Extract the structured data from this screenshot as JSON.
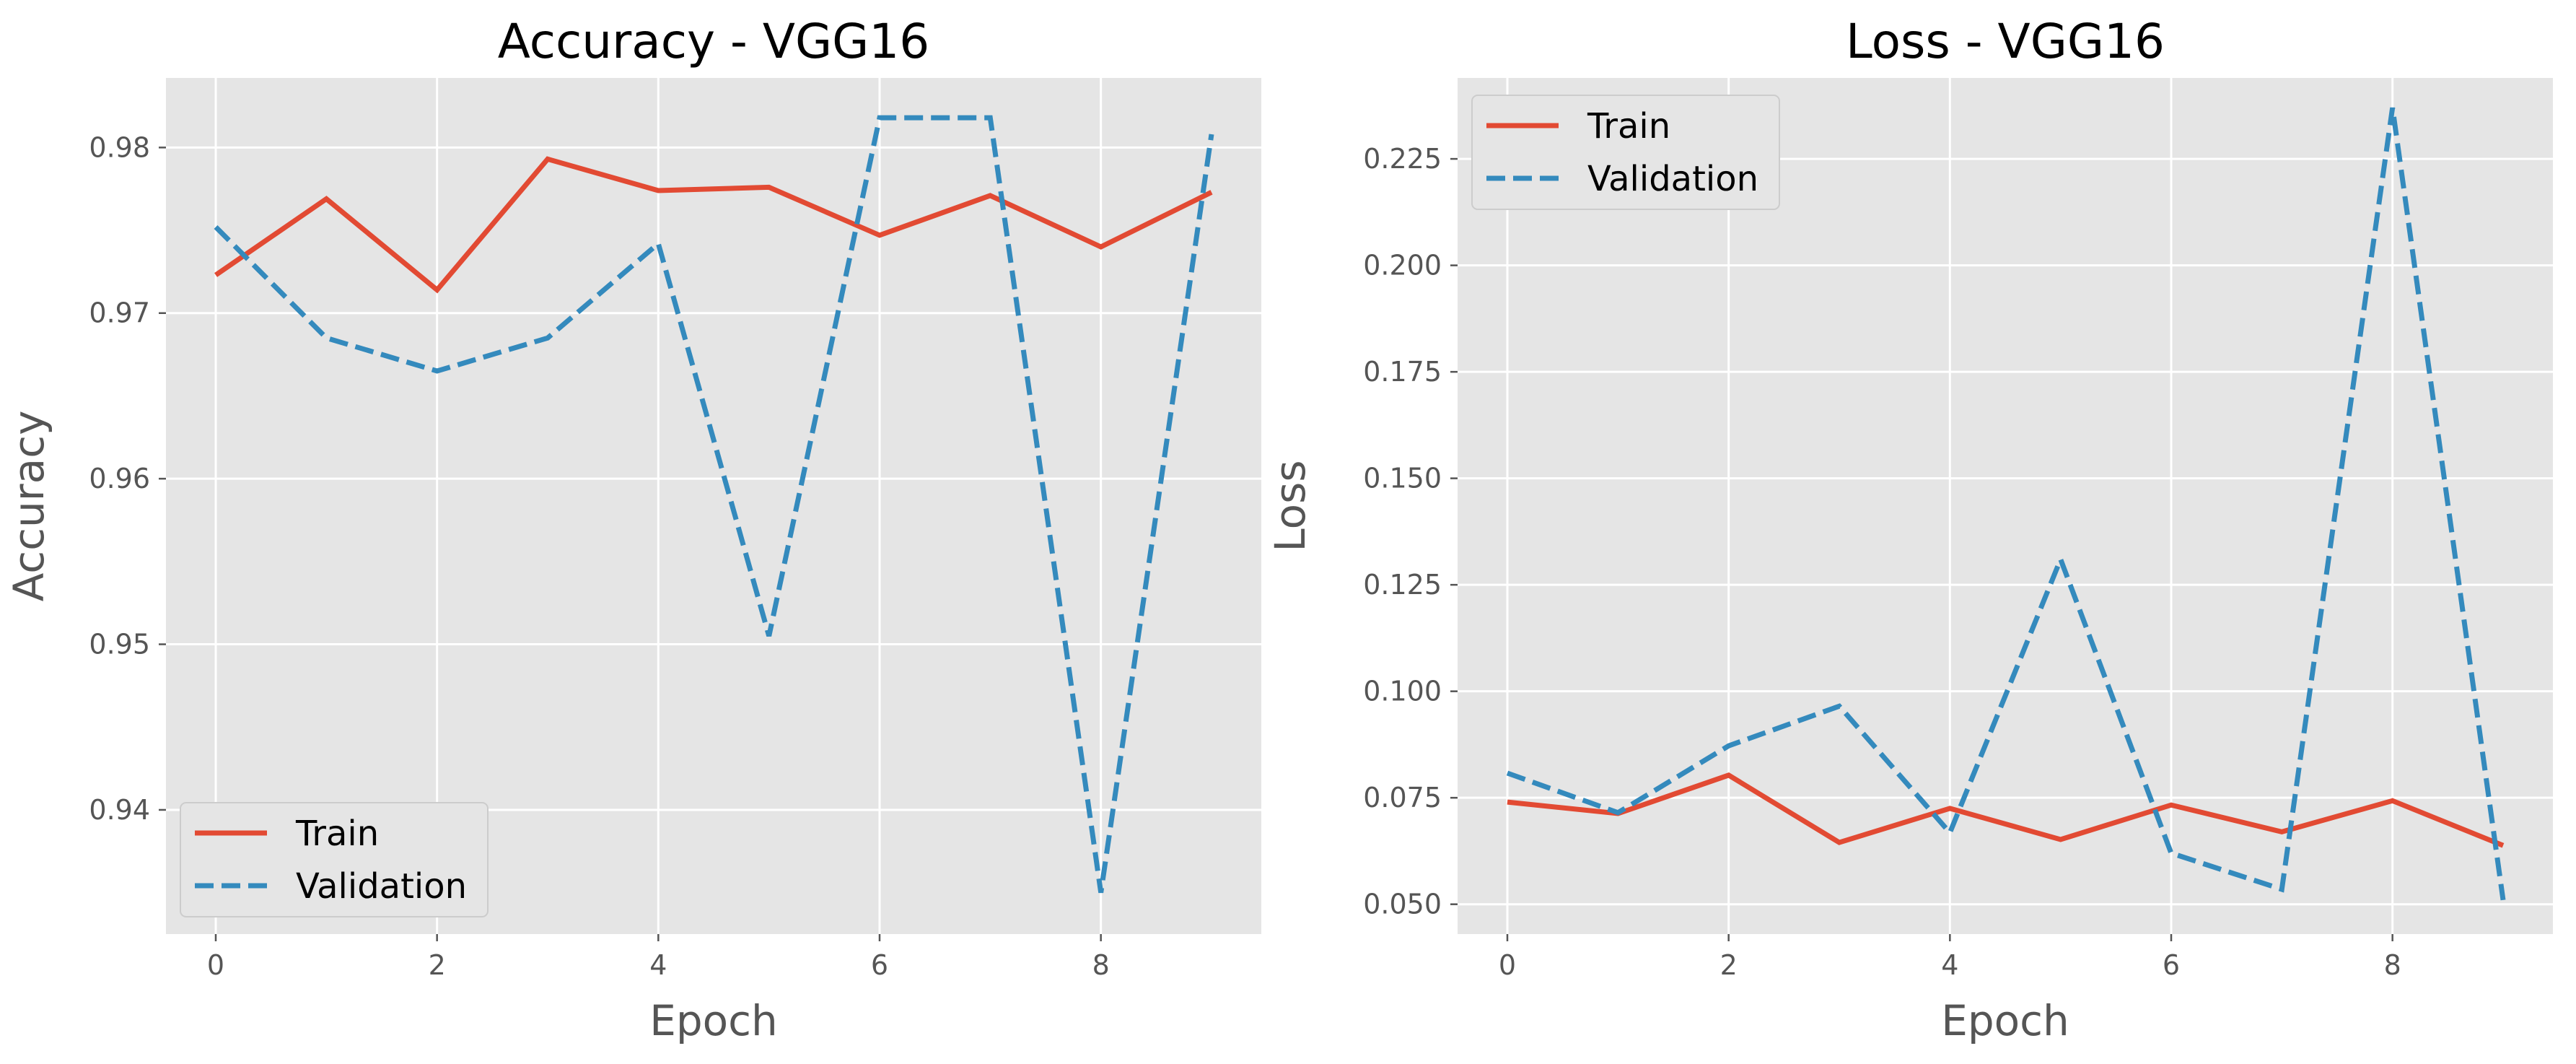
{
  "chart_data": [
    {
      "type": "line",
      "title": "Accuracy - VGG16",
      "xlabel": "Epoch",
      "ylabel": "Accuracy",
      "x": [
        0,
        1,
        2,
        3,
        4,
        5,
        6,
        7,
        8,
        9
      ],
      "xlim": [
        -0.45,
        9.45
      ],
      "ylim": [
        0.9325,
        0.9842
      ],
      "xticks": [
        0,
        2,
        4,
        6,
        8
      ],
      "yticks": [
        0.94,
        0.95,
        0.96,
        0.97,
        0.98
      ],
      "ytick_labels": [
        "0.94",
        "0.95",
        "0.96",
        "0.97",
        "0.98"
      ],
      "grid": true,
      "legend_position": "lower-left",
      "series": [
        {
          "name": "Train",
          "style": "solid",
          "color": "#E24A33",
          "values": [
            0.9723,
            0.9769,
            0.9714,
            0.9793,
            0.9774,
            0.9776,
            0.9747,
            0.9771,
            0.974,
            0.9773
          ]
        },
        {
          "name": "Validation",
          "style": "dashed",
          "color": "#348ABD",
          "values": [
            0.9752,
            0.9685,
            0.9665,
            0.9685,
            0.9742,
            0.9505,
            0.9818,
            0.9818,
            0.935,
            0.9808
          ]
        }
      ]
    },
    {
      "type": "line",
      "title": "Loss - VGG16",
      "xlabel": "Epoch",
      "ylabel": "Loss",
      "x": [
        0,
        1,
        2,
        3,
        4,
        5,
        6,
        7,
        8,
        9
      ],
      "xlim": [
        -0.45,
        9.45
      ],
      "ylim": [
        0.043,
        0.244
      ],
      "xticks": [
        0,
        2,
        4,
        6,
        8
      ],
      "yticks": [
        0.05,
        0.075,
        0.1,
        0.125,
        0.15,
        0.175,
        0.2,
        0.225
      ],
      "ytick_labels": [
        "0.050",
        "0.075",
        "0.100",
        "0.125",
        "0.150",
        "0.175",
        "0.200",
        "0.225"
      ],
      "grid": true,
      "legend_position": "upper-left",
      "series": [
        {
          "name": "Train",
          "style": "solid",
          "color": "#E24A33",
          "values": [
            0.074,
            0.0713,
            0.0803,
            0.0645,
            0.0725,
            0.0652,
            0.0733,
            0.067,
            0.0743,
            0.0638
          ]
        },
        {
          "name": "Validation",
          "style": "dashed",
          "color": "#348ABD",
          "values": [
            0.0808,
            0.0715,
            0.0872,
            0.0965,
            0.0668,
            0.131,
            0.062,
            0.0535,
            0.237,
            0.051
          ]
        }
      ]
    }
  ]
}
